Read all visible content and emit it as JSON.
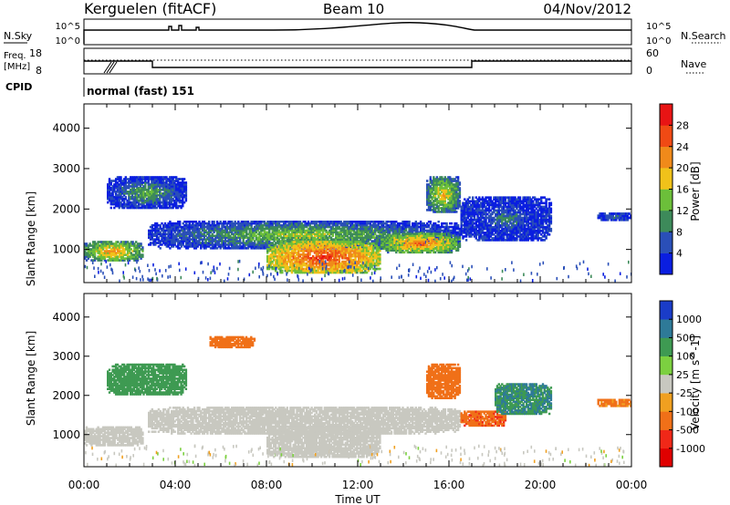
{
  "header": {
    "station": "Kerguelen (fitACF)",
    "beam": "Beam 10",
    "date": "04/Nov/2012"
  },
  "top_panels": {
    "nsky_label": "N.Sky",
    "nsearch_label": "N.Search",
    "noise_tick_hi": "10^5",
    "noise_tick_lo": "10^0",
    "freq_label_1": "Freq.",
    "freq_label_2": "[MHz]",
    "freq_tick_hi": "18",
    "freq_tick_lo": "8",
    "nave_label": "Nave",
    "nave_tick_hi": "60",
    "nave_tick_lo": "0",
    "cpid_label": "CPID",
    "cpid_text": "normal (fast) 151"
  },
  "chart_data": [
    {
      "type": "heatmap",
      "title": "",
      "ylabel": "Slant Range [km]",
      "xlabel": "",
      "x_range_hours": [
        0,
        24
      ],
      "ylim": [
        180,
        4600
      ],
      "yticks": [
        "1000",
        "2000",
        "3000",
        "4000"
      ],
      "colorbar_label": "Power [dB]",
      "colorbar_ticks": [
        "4",
        "8",
        "12",
        "16",
        "20",
        "24",
        "28"
      ],
      "colorbar_colors": [
        "#0a1ee0",
        "#2a4fb8",
        "#3d8a5a",
        "#6cbf3a",
        "#f0c21a",
        "#f08a1a",
        "#f04a14",
        "#e81414"
      ],
      "blobs": [
        {
          "t0": 0.0,
          "t1": 2.6,
          "r0": 700,
          "r1": 1200,
          "v": 22
        },
        {
          "t0": 2.8,
          "t1": 16.5,
          "r0": 1000,
          "r1": 1700,
          "v": 16
        },
        {
          "t0": 8.0,
          "t1": 13.0,
          "r0": 400,
          "r1": 1200,
          "v": 28
        },
        {
          "t0": 13.0,
          "t1": 16.5,
          "r0": 900,
          "r1": 1400,
          "v": 24
        },
        {
          "t0": 1.0,
          "t1": 4.5,
          "r0": 2000,
          "r1": 2800,
          "v": 14
        },
        {
          "t0": 15.0,
          "t1": 16.5,
          "r0": 1900,
          "r1": 2800,
          "v": 20
        },
        {
          "t0": 16.5,
          "t1": 20.5,
          "r0": 1200,
          "r1": 2300,
          "v": 10
        },
        {
          "t0": 22.5,
          "t1": 24.0,
          "r0": 1700,
          "r1": 1900,
          "v": 10
        }
      ]
    },
    {
      "type": "heatmap",
      "title": "",
      "ylabel": "Slant Range [km]",
      "xlabel": "Time UT",
      "x_range_hours": [
        0,
        24
      ],
      "xticks": [
        "00:00",
        "04:00",
        "08:00",
        "12:00",
        "16:00",
        "20:00",
        "00:00"
      ],
      "ylim": [
        180,
        4600
      ],
      "yticks": [
        "1000",
        "2000",
        "3000",
        "4000"
      ],
      "colorbar_label": "Velocity [m s^-1]",
      "colorbar_ticks": [
        "1000",
        "500",
        "100",
        "25",
        "-25",
        "-100",
        "-500",
        "-1000"
      ],
      "colorbar_colors": [
        "#1a3cc8",
        "#2e7a98",
        "#3e9a52",
        "#7cd040",
        "#c8c8c0",
        "#f0a020",
        "#f07018",
        "#f02818",
        "#e00000"
      ],
      "blobs": [
        {
          "t0": 2.8,
          "t1": 16.5,
          "r0": 1000,
          "r1": 1700,
          "v": 0
        },
        {
          "t0": 0.0,
          "t1": 2.6,
          "r0": 700,
          "r1": 1200,
          "v": 0
        },
        {
          "t0": 8.0,
          "t1": 13.0,
          "r0": 400,
          "r1": 1200,
          "v": 0
        },
        {
          "t0": 1.0,
          "t1": 4.5,
          "r0": 2000,
          "r1": 2800,
          "v": 200
        },
        {
          "t0": 5.5,
          "t1": 7.5,
          "r0": 3200,
          "r1": 3500,
          "v": -200
        },
        {
          "t0": 15.0,
          "t1": 16.5,
          "r0": 1900,
          "r1": 2800,
          "v": -300
        },
        {
          "t0": 16.5,
          "t1": 18.5,
          "r0": 1200,
          "r1": 1600,
          "v": -400
        },
        {
          "t0": 18.0,
          "t1": 20.5,
          "r0": 1500,
          "r1": 2300,
          "v": 500
        },
        {
          "t0": 22.5,
          "t1": 24.0,
          "r0": 1700,
          "r1": 1900,
          "v": -150
        }
      ]
    }
  ]
}
